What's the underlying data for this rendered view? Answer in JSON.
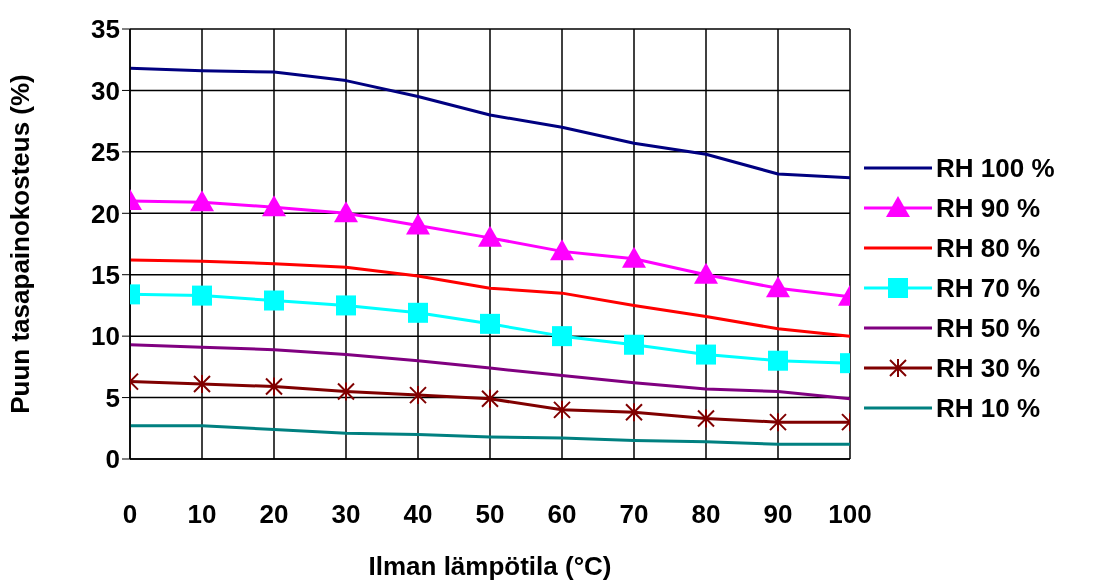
{
  "chart_data": {
    "type": "line",
    "xlabel": "Ilman lämpötila (°C)",
    "ylabel": "Puun tasapainokosteus (%)",
    "x": [
      0,
      10,
      20,
      30,
      40,
      50,
      60,
      70,
      80,
      90,
      100
    ],
    "series": [
      {
        "name": "RH 100 %",
        "color": "#000080",
        "marker": "none",
        "values": [
          31.8,
          31.6,
          31.5,
          30.8,
          29.5,
          28.0,
          27.0,
          25.7,
          24.8,
          23.2,
          22.9
        ]
      },
      {
        "name": "RH 90 %",
        "color": "#ff00ff",
        "marker": "triangle",
        "values": [
          21.0,
          20.9,
          20.5,
          20.0,
          19.0,
          18.0,
          16.9,
          16.3,
          15.0,
          13.9,
          13.2
        ]
      },
      {
        "name": "RH 80 %",
        "color": "#ff0000",
        "marker": "none",
        "values": [
          16.2,
          16.1,
          15.9,
          15.6,
          14.9,
          13.9,
          13.5,
          12.5,
          11.6,
          10.6,
          10.0
        ]
      },
      {
        "name": "RH 70 %",
        "color": "#00ffff",
        "marker": "square",
        "values": [
          13.4,
          13.3,
          12.9,
          12.5,
          11.9,
          11.0,
          10.0,
          9.3,
          8.5,
          8.0,
          7.8
        ]
      },
      {
        "name": "RH 50 %",
        "color": "#800080",
        "marker": "none",
        "values": [
          9.3,
          9.1,
          8.9,
          8.5,
          8.0,
          7.4,
          6.8,
          6.2,
          5.7,
          5.5,
          4.9
        ]
      },
      {
        "name": "RH 30 %",
        "color": "#800000",
        "marker": "cross",
        "values": [
          6.3,
          6.1,
          5.9,
          5.5,
          5.2,
          4.9,
          4.0,
          3.8,
          3.3,
          3.0,
          3.0
        ]
      },
      {
        "name": "RH 10 %",
        "color": "#008080",
        "marker": "none",
        "values": [
          2.7,
          2.7,
          2.4,
          2.1,
          2.0,
          1.8,
          1.7,
          1.5,
          1.4,
          1.2,
          1.2
        ]
      }
    ],
    "xlim": [
      0,
      100
    ],
    "xticks": [
      0,
      10,
      20,
      30,
      40,
      50,
      60,
      70,
      80,
      90,
      100
    ],
    "ylim": [
      0,
      35
    ],
    "yticks": [
      0,
      5,
      10,
      15,
      20,
      25,
      30,
      35
    ],
    "grid": true,
    "legend": "right",
    "line_style": "solid"
  }
}
